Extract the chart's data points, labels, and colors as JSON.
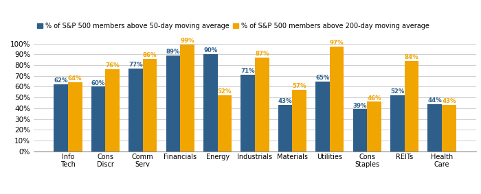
{
  "categories": [
    "Info\nTech",
    "Cons\nDiscr",
    "Comm\nServ",
    "Financials",
    "Energy",
    "Industrials",
    "Materials",
    "Utilities",
    "Cons\nStaples",
    "REITs",
    "Health\nCare"
  ],
  "blue_values": [
    62,
    60,
    77,
    89,
    90,
    71,
    43,
    65,
    39,
    52,
    44
  ],
  "orange_values": [
    64,
    76,
    86,
    99,
    52,
    87,
    57,
    97,
    46,
    84,
    43
  ],
  "blue_color": "#2E5F8A",
  "orange_color": "#F0A500",
  "legend_blue": "% of S&P 500 members above 50-day moving average",
  "legend_orange": "% of S&P 500 members above 200-day moving average",
  "ylim": [
    0,
    108
  ],
  "yticks": [
    0,
    10,
    20,
    30,
    40,
    50,
    60,
    70,
    80,
    90,
    100
  ],
  "ytick_labels": [
    "0%",
    "10%",
    "20%",
    "30%",
    "40%",
    "50%",
    "60%",
    "70%",
    "80%",
    "90%",
    "100%"
  ],
  "bar_width": 0.38,
  "figsize": [
    7.0,
    2.83
  ],
  "dpi": 100,
  "label_fontsize": 7.0,
  "tick_fontsize": 7.5,
  "legend_fontsize": 7.0,
  "value_fontsize": 6.2,
  "background_color": "#FFFFFF",
  "grid_color": "#C8C8C8"
}
